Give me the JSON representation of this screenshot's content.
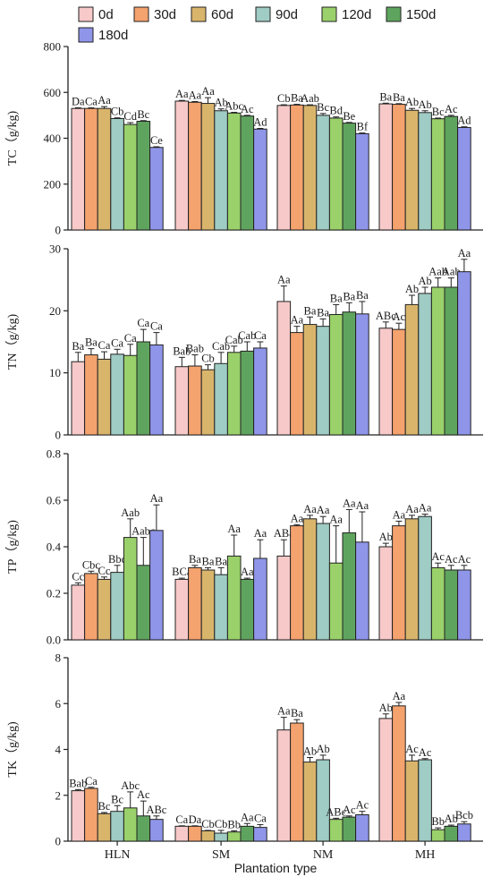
{
  "chart_data": {
    "type": "bar",
    "xlabel": "Plantation type",
    "categories": [
      "HLN",
      "SM",
      "NM",
      "MH"
    ],
    "legend": {
      "placement": "top",
      "entries": [
        "0d",
        "30d",
        "60d",
        "90d",
        "120d",
        "150d",
        "180d"
      ],
      "colors": [
        "#f7c9c9",
        "#f4a26e",
        "#d9b56c",
        "#9fccc4",
        "#9ad16a",
        "#5fa45e",
        "#8f95e8"
      ]
    },
    "panels": [
      {
        "ylabel": "TC（g/kg)",
        "ylim": [
          0,
          800
        ],
        "yticks": [
          0,
          200,
          400,
          600,
          800
        ],
        "tick_labels": [
          "0",
          "200",
          "400",
          "600",
          "800"
        ],
        "series": [
          {
            "name": "0d",
            "values": [
              530,
              562,
              543,
              550
            ],
            "errors": [
              3,
              3,
              3,
              3
            ],
            "labels": [
              "Da",
              "Aa",
              "Cb",
              "Ba"
            ]
          },
          {
            "name": "30d",
            "values": [
              530,
              557,
              545,
              548
            ],
            "errors": [
              3,
              3,
              3,
              3
            ],
            "labels": [
              "Ca",
              "Aa",
              "Ba",
              "Ba"
            ]
          },
          {
            "name": "60d",
            "values": [
              530,
              552,
              543,
              522
            ],
            "errors": [
              8,
              25,
              3,
              8
            ],
            "labels": [
              "Aa",
              "Aa",
              "Aab",
              "Ab"
            ]
          },
          {
            "name": "90d",
            "values": [
              486,
              520,
              500,
              512
            ],
            "errors": [
              3,
              8,
              8,
              8
            ],
            "labels": [
              "Cb",
              "Ab",
              "Bc",
              "Ab"
            ]
          },
          {
            "name": "120d",
            "values": [
              460,
              510,
              488,
              485
            ],
            "errors": [
              8,
              3,
              5,
              3
            ],
            "labels": [
              "Cd",
              "Abc",
              "Bd",
              "Bc"
            ]
          },
          {
            "name": "150d",
            "values": [
              474,
              497,
              466,
              495
            ],
            "errors": [
              3,
              3,
              3,
              5
            ],
            "labels": [
              "Bc",
              "Ac",
              "Be",
              "Ac"
            ]
          },
          {
            "name": "180d",
            "values": [
              360,
              440,
              420,
              447
            ],
            "errors": [
              3,
              3,
              3,
              3
            ],
            "labels": [
              "Ce",
              "Ad",
              "Bf",
              "Ad"
            ]
          }
        ]
      },
      {
        "ylabel": "TN（g/kg)",
        "ylim": [
          0,
          30
        ],
        "yticks": [
          0,
          10,
          20,
          30
        ],
        "tick_labels": [
          "0",
          "10",
          "20",
          "30"
        ],
        "series": [
          {
            "name": "0d",
            "values": [
              11.8,
              11.0,
              21.5,
              17.2
            ],
            "errors": [
              1.5,
              1.5,
              2.5,
              1.0
            ],
            "labels": [
              "Ba",
              "Bab",
              "Aa",
              "ABc"
            ]
          },
          {
            "name": "30d",
            "values": [
              12.9,
              11.1,
              16.5,
              17.0
            ],
            "errors": [
              1.0,
              1.8,
              1.0,
              1.0
            ],
            "labels": [
              "Ba",
              "Bab",
              "Aa",
              "Ac"
            ]
          },
          {
            "name": "60d",
            "values": [
              12.2,
              10.5,
              17.8,
              21.0
            ],
            "errors": [
              1.2,
              0.8,
              1.2,
              1.5
            ],
            "labels": [
              "Ca",
              "Cb",
              "Ba",
              "Ab"
            ]
          },
          {
            "name": "90d",
            "values": [
              13.0,
              11.5,
              17.5,
              22.8
            ],
            "errors": [
              0.8,
              1.8,
              1.2,
              1.0
            ],
            "labels": [
              "Ca",
              "Cab",
              "Ba",
              "Ab"
            ]
          },
          {
            "name": "120d",
            "values": [
              12.8,
              13.3,
              19.4,
              23.8
            ],
            "errors": [
              1.8,
              1.0,
              1.6,
              1.5
            ],
            "labels": [
              "Ca",
              "Cab",
              "Ba",
              "Aab"
            ]
          },
          {
            "name": "150d",
            "values": [
              15.0,
              13.5,
              19.8,
              23.8
            ],
            "errors": [
              2.0,
              1.5,
              1.5,
              1.5
            ],
            "labels": [
              "Ca",
              "Cab",
              "Ba",
              "Aab"
            ]
          },
          {
            "name": "180d",
            "values": [
              14.5,
              14.0,
              19.5,
              26.3
            ],
            "errors": [
              2.0,
              1.0,
              2.0,
              2.0
            ],
            "labels": [
              "Ca",
              "Ca",
              "Ba",
              "Aa"
            ]
          }
        ]
      },
      {
        "ylabel": "TP（g/kg)",
        "ylim": [
          0,
          0.8
        ],
        "yticks": [
          0,
          0.2,
          0.4,
          0.6,
          0.8
        ],
        "tick_labels": [
          "0.0",
          "0.2",
          "0.4",
          "0.6",
          "0.8"
        ],
        "series": [
          {
            "name": "0d",
            "values": [
              0.235,
              0.26,
              0.36,
              0.4
            ],
            "errors": [
              0.01,
              0.005,
              0.07,
              0.015
            ],
            "labels": [
              "Cc",
              "BCa",
              "ABa",
              "Ab"
            ]
          },
          {
            "name": "30d",
            "values": [
              0.285,
              0.31,
              0.49,
              0.49
            ],
            "errors": [
              0.01,
              0.01,
              0.005,
              0.02
            ],
            "labels": [
              "Cbc",
              "Ba",
              "Aa",
              "Aa"
            ]
          },
          {
            "name": "60d",
            "values": [
              0.26,
              0.3,
              0.52,
              0.52
            ],
            "errors": [
              0.01,
              0.01,
              0.015,
              0.015
            ],
            "labels": [
              "Cc",
              "Ba",
              "Aa",
              "Aa"
            ]
          },
          {
            "name": "90d",
            "values": [
              0.29,
              0.28,
              0.5,
              0.53
            ],
            "errors": [
              0.03,
              0.03,
              0.03,
              0.01
            ],
            "labels": [
              "Bbc",
              "Ba",
              "Aa",
              "Aa"
            ]
          },
          {
            "name": "120d",
            "values": [
              0.44,
              0.36,
              0.33,
              0.31
            ],
            "errors": [
              0.08,
              0.09,
              0.16,
              0.02
            ],
            "labels": [
              "Aab",
              "Aa",
              "Aa",
              "Ac"
            ]
          },
          {
            "name": "150d",
            "values": [
              0.32,
              0.26,
              0.46,
              0.3
            ],
            "errors": [
              0.12,
              0.005,
              0.1,
              0.02
            ],
            "labels": [
              "Aabc",
              "Aa",
              "Aa",
              "Ac"
            ]
          },
          {
            "name": "180d",
            "values": [
              0.47,
              0.35,
              0.42,
              0.3
            ],
            "errors": [
              0.11,
              0.08,
              0.13,
              0.02
            ],
            "labels": [
              "Aa",
              "Aa",
              "Aa",
              "Ac"
            ]
          }
        ]
      },
      {
        "ylabel": "TK（g/kg)",
        "ylim": [
          0,
          8
        ],
        "yticks": [
          0,
          2,
          4,
          6,
          8
        ],
        "tick_labels": [
          "0",
          "2",
          "4",
          "6",
          "8"
        ],
        "series": [
          {
            "name": "0d",
            "values": [
              2.2,
              0.65,
              4.85,
              5.35
            ],
            "errors": [
              0.05,
              0.02,
              0.55,
              0.2
            ],
            "labels": [
              "Bab",
              "Ca",
              "Aa",
              "Ab"
            ]
          },
          {
            "name": "30d",
            "values": [
              2.3,
              0.65,
              5.15,
              5.9
            ],
            "errors": [
              0.05,
              0.02,
              0.15,
              0.15
            ],
            "labels": [
              "Ca",
              "Da",
              "Ba",
              "Aa"
            ]
          },
          {
            "name": "60d",
            "values": [
              1.2,
              0.45,
              3.45,
              3.5
            ],
            "errors": [
              0.05,
              0.02,
              0.2,
              0.25
            ],
            "labels": [
              "Bc",
              "Cb",
              "Ab",
              "Ac"
            ]
          },
          {
            "name": "90d",
            "values": [
              1.3,
              0.35,
              3.55,
              3.55
            ],
            "errors": [
              0.25,
              0.12,
              0.2,
              0.05
            ],
            "labels": [
              "Bc",
              "Cb",
              "Ab",
              "Ac"
            ]
          },
          {
            "name": "120d",
            "values": [
              1.45,
              0.4,
              0.95,
              0.5
            ],
            "errors": [
              0.7,
              0.05,
              0.05,
              0.08
            ],
            "labels": [
              "Abc",
              "Bb",
              "ABc",
              "Bb"
            ]
          },
          {
            "name": "150d",
            "values": [
              1.1,
              0.65,
              1.05,
              0.65
            ],
            "errors": [
              0.65,
              0.12,
              0.05,
              0.05
            ],
            "labels": [
              "Ac",
              "Aa",
              "Ac",
              "Ab"
            ]
          },
          {
            "name": "180d",
            "values": [
              0.95,
              0.6,
              1.15,
              0.75
            ],
            "errors": [
              0.15,
              0.12,
              0.15,
              0.1
            ],
            "labels": [
              "ABc",
              "Ca",
              "Ac",
              "Bcb"
            ]
          }
        ]
      }
    ]
  }
}
